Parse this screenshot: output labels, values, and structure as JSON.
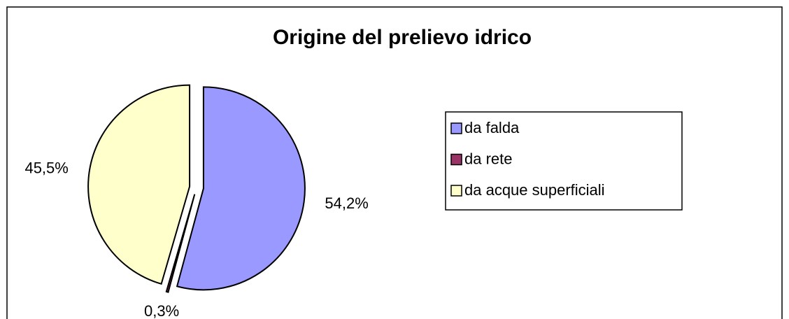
{
  "chart_data": {
    "type": "pie",
    "title": "Origine del prelievo idrico",
    "categories": [
      "da falda",
      "da rete",
      "da acque superficiali"
    ],
    "values": [
      54.2,
      0.3,
      45.5
    ],
    "value_labels": [
      "54,2%",
      "0,3%",
      "45,5%"
    ],
    "colors": [
      "#9999ff",
      "#993366",
      "#ffffcc"
    ],
    "legend": "right"
  }
}
